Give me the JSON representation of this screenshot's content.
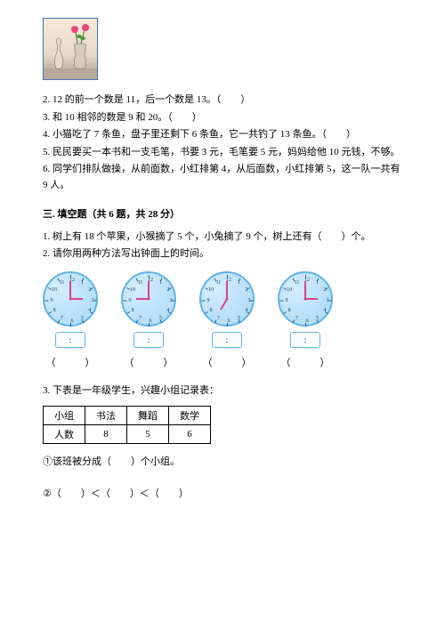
{
  "questions": {
    "q2": "2. 12 的前一个数是 11，后一个数是 13。（　　）",
    "q3": "3. 和 10 相邻的数是 9 和 20。（　　）",
    "q4": "4. 小猫吃了 7 条鱼，盘子里还剩下 6 条鱼，它一共钓了 13 条鱼。（　　）",
    "q5": "5. 民民要买一本书和一支毛笔，书要 3 元，毛笔要 5 元，妈妈给他 10 元钱，不够。",
    "q6": "6. 同学们排队做操，从前面数，小红排第 4，从后面数，小红排第 5，这一队一共有 9 人。"
  },
  "section3": {
    "title": "三. 填空题（共 6 题，共 28 分）",
    "q1": "1. 树上有 18 个苹果，小猴摘了 5 个，小兔摘了 9 个，树上还有（　　）个。",
    "q2": "2. 请你用两种方法写出钟面上的时间。",
    "clocks": [
      {
        "hour_angle": 90,
        "minute_angle": 0
      },
      {
        "hour_angle": 270,
        "minute_angle": 0
      },
      {
        "hour_angle": 210,
        "minute_angle": 0
      },
      {
        "hour_angle": 90,
        "minute_angle": 0
      }
    ],
    "time_sep": ":",
    "paren": "（　　　）",
    "q3": "3. 下表是一年级学生，兴趣小组记录表：",
    "table": {
      "header": [
        "小组",
        "书法",
        "舞蹈",
        "数学"
      ],
      "row": [
        "人数",
        "8",
        "5",
        "6"
      ]
    },
    "sub1": "①该班被分成（　　）个小组。",
    "sub2": "②（　　）＜（　　）＜（　　）"
  },
  "style": {
    "clock_border": "#5fb3e8",
    "clock_bg_inner": "#d4edff",
    "clock_bg_outer": "#a8d8f5",
    "hand_color": "#d6458a",
    "tick_color": "#2a5a8a"
  }
}
